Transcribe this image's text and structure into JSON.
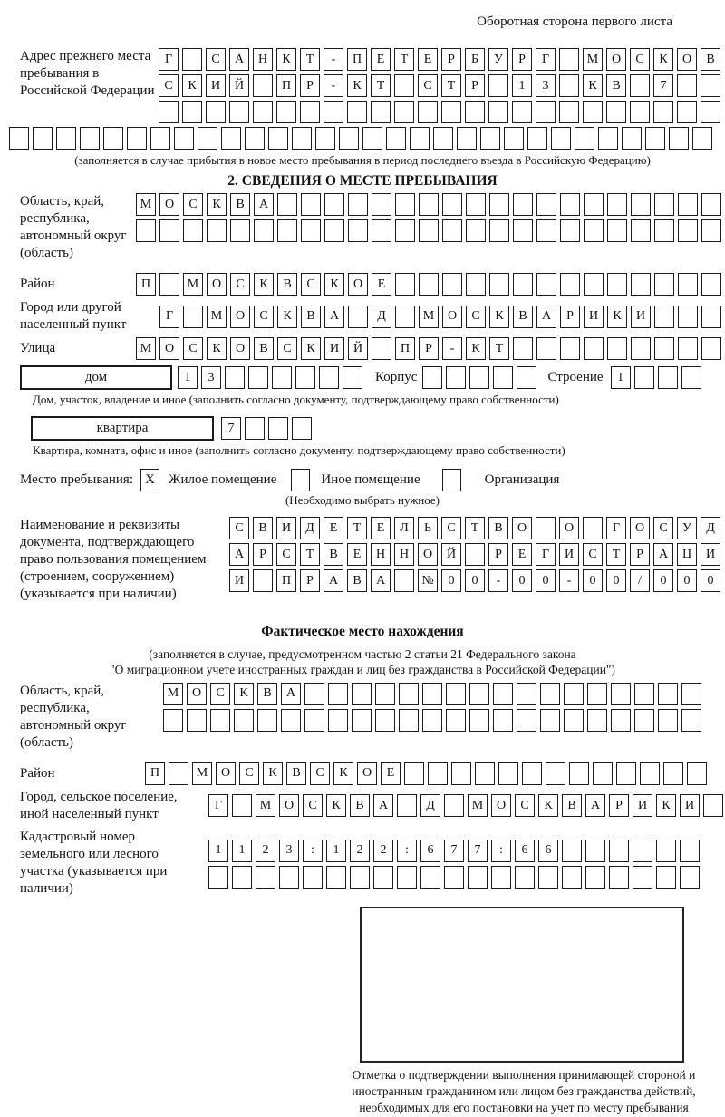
{
  "header": {
    "note": "Оборотная сторона первого листа"
  },
  "prev_address": {
    "label": "Адрес прежнего места пребывания в Российской Федерации",
    "rows": [
      {
        "len": 24,
        "chars": "Г САНКТ-ПЕТЕРБУРГ МОСКОВ"
      },
      {
        "len": 24,
        "chars": "СКИЙ ПР-КТ СТР 13 КВ 7"
      },
      {
        "len": 24,
        "chars": ""
      }
    ],
    "full_row": {
      "len": 30,
      "chars": ""
    },
    "note": "(заполняется в случае прибытия в новое место пребывания в период последнего въезда в Российскую Федерацию)"
  },
  "section2": {
    "title": "2. СВЕДЕНИЯ О МЕСТЕ ПРЕБЫВАНИЯ",
    "region": {
      "label": "Область, край, республика, автономный округ (область)",
      "rows": [
        {
          "len": 25,
          "chars": "МОСКВА"
        },
        {
          "len": 25,
          "chars": ""
        }
      ]
    },
    "district": {
      "label": "Район",
      "row": {
        "len": 25,
        "chars": "П МОСКВСКОЕ"
      }
    },
    "city": {
      "label": "Город или другой населенный пункт",
      "row": {
        "len": 24,
        "chars": "Г МОСКВА Д МОСКВАРИКИ"
      }
    },
    "street": {
      "label": "Улица",
      "row": {
        "len": 25,
        "chars": "МОСКОВСКИЙ ПР-КТ"
      }
    },
    "house": {
      "type_label": "дом",
      "number_row": {
        "len": 8,
        "chars": "13"
      },
      "korpus_label": "Корпус",
      "korpus_row": {
        "len": 5,
        "chars": ""
      },
      "stroenie_label": "Строение",
      "stroenie_row": {
        "len": 4,
        "chars": "1"
      },
      "note": "Дом, участок, владение и иное (заполнить согласно документу, подтверждающему право собственности)"
    },
    "apartment": {
      "type_label": "квартира",
      "number_row": {
        "len": 4,
        "chars": "7"
      },
      "note": "Квартира, комната, офис и иное (заполнить согласно документу, подтверждающему право собственности)"
    },
    "stay_type": {
      "label": "Место пребывания:",
      "options": [
        {
          "label": "Жилое помещение",
          "checked": "X"
        },
        {
          "label": "Иное помещение",
          "checked": ""
        },
        {
          "label": "Организация",
          "checked": ""
        }
      ],
      "note": "(Необходимо выбрать нужное)"
    },
    "document": {
      "label": "Наименование и реквизиты документа, подтверждающего право пользования помещением (строением, сооружением) (указывается при наличии)",
      "rows": [
        {
          "len": 21,
          "chars": "СВИДЕТЕЛЬСТВО О ГОСУД"
        },
        {
          "len": 21,
          "chars": "АРСТВЕННОЙ РЕГИСТРАЦИ"
        },
        {
          "len": 21,
          "chars": "И ПРАВА №00-00-00/000"
        }
      ]
    }
  },
  "actual_location": {
    "title": "Фактическое место нахождения",
    "note_line1": "(заполняется в случае, предусмотренном частью 2 статьи 21 Федерального закона",
    "note_line2": "\"О миграционном учете иностранных граждан и лиц без гражданства в Российской Федерации\")",
    "region": {
      "label": "Область, край, республика, автономный округ (область)",
      "rows": [
        {
          "len": 23,
          "chars": "МОСКВА"
        },
        {
          "len": 23,
          "chars": ""
        }
      ]
    },
    "district": {
      "label": "Район",
      "row": {
        "len": 24,
        "chars": "П МОСКВСКОЕ"
      }
    },
    "city": {
      "label": "Город, сельское поселение, иной населенный пункт",
      "row": {
        "len": 22,
        "chars": "Г МОСКВА Д МОСКВАРИКИ"
      }
    },
    "cadastral": {
      "label": "Кадастровый номер земельного или лесного участка (указывается при наличии)",
      "rows": [
        {
          "len": 21,
          "chars": "1123:122:677:66"
        },
        {
          "len": 21,
          "chars": ""
        }
      ]
    }
  },
  "confirmation": {
    "caption": "Отметка о подтверждении выполнения принимающей стороной и иностранным гражданином или лицом без гражданства действий, необходимых для его постановки на учет по месту пребывания"
  }
}
